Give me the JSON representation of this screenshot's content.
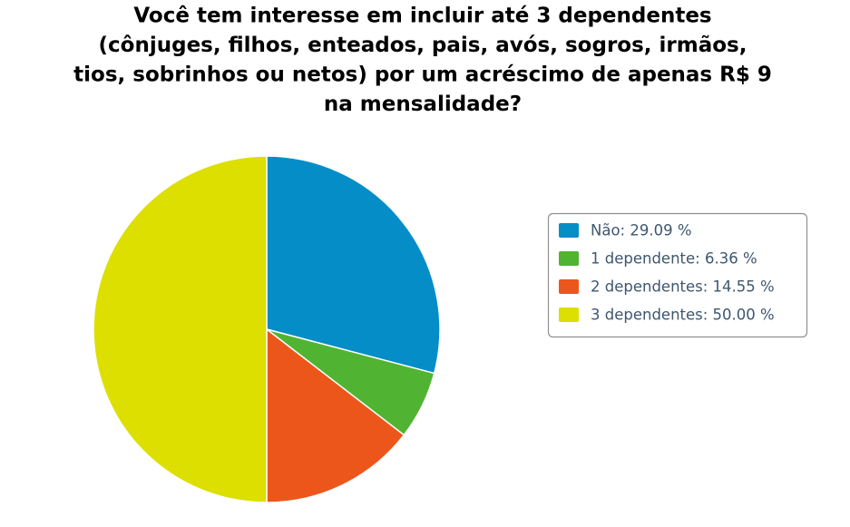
{
  "chart_data": {
    "type": "pie",
    "title": [
      "Você tem interesse em incluir até 3 dependentes",
      "(cônjuges, filhos, enteados, pais, avós, sogros, irmãos,",
      "tios, sobrinhos ou netos) por um acréscimo de apenas R$ 9",
      "na mensalidade?"
    ],
    "categories": [
      "Não: 29.09 %",
      "1 dependente: 6.36 %",
      "2 dependentes: 14.55 %",
      "3 dependentes: 50.00 %"
    ],
    "values": [
      29.09,
      6.36,
      14.55,
      50.0
    ],
    "colors": [
      "#058dc7",
      "#50b432",
      "#ed561b",
      "#dddf00"
    ],
    "legend": "right"
  }
}
